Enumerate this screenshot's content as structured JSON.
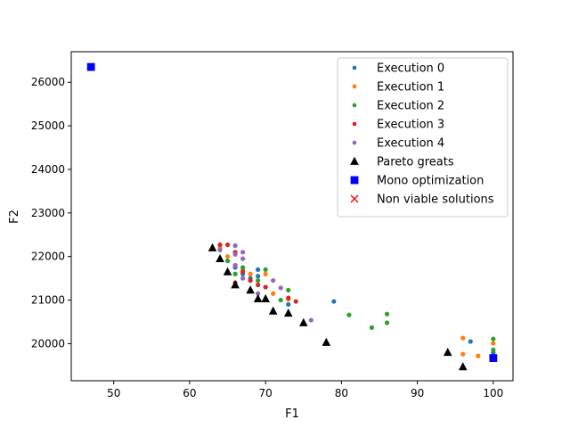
{
  "chart_data": {
    "type": "scatter",
    "title": "",
    "xlabel": "F1",
    "ylabel": "F2",
    "xlim": [
      44.4,
      102.6
    ],
    "ylim": [
      19150,
      26700
    ],
    "xticks": [
      50,
      60,
      70,
      80,
      90,
      100
    ],
    "yticks": [
      20000,
      21000,
      22000,
      23000,
      24000,
      25000,
      26000
    ],
    "legend_position": "top-right",
    "series": [
      {
        "name": "Execution 0",
        "marker": "circle",
        "color": "#1f77b4",
        "points": [
          [
            66,
            21750
          ],
          [
            67,
            21600
          ],
          [
            68,
            21500
          ],
          [
            69,
            21700
          ],
          [
            69,
            21550
          ],
          [
            70,
            21300
          ],
          [
            73,
            20900
          ],
          [
            79,
            20970
          ],
          [
            97,
            20050
          ],
          [
            100,
            19800
          ]
        ]
      },
      {
        "name": "Execution 1",
        "marker": "circle",
        "color": "#ff7f0e",
        "points": [
          [
            64,
            22200
          ],
          [
            65,
            22000
          ],
          [
            66,
            21800
          ],
          [
            67,
            21700
          ],
          [
            68,
            21600
          ],
          [
            70,
            21600
          ],
          [
            71,
            21150
          ],
          [
            73,
            21020
          ],
          [
            96,
            20130
          ],
          [
            96,
            19760
          ],
          [
            98,
            19720
          ],
          [
            100,
            20010
          ]
        ]
      },
      {
        "name": "Execution 2",
        "marker": "circle",
        "color": "#2ca02c",
        "points": [
          [
            65,
            21900
          ],
          [
            66,
            21600
          ],
          [
            67,
            21750
          ],
          [
            69,
            21450
          ],
          [
            70,
            21700
          ],
          [
            72,
            21000
          ],
          [
            73,
            21230
          ],
          [
            81,
            20660
          ],
          [
            84,
            20370
          ],
          [
            86,
            20680
          ],
          [
            86,
            20480
          ],
          [
            100,
            20110
          ],
          [
            100,
            19860
          ]
        ]
      },
      {
        "name": "Execution 3",
        "marker": "circle",
        "color": "#d62728",
        "points": [
          [
            64,
            22270
          ],
          [
            65,
            22270
          ],
          [
            66,
            22100
          ],
          [
            66,
            21400
          ],
          [
            67,
            21650
          ],
          [
            68,
            21450
          ],
          [
            69,
            21350
          ],
          [
            70,
            21300
          ],
          [
            73,
            21050
          ],
          [
            74,
            20970
          ]
        ]
      },
      {
        "name": "Execution 4",
        "marker": "circle",
        "color": "#9467bd",
        "points": [
          [
            64,
            22150
          ],
          [
            66,
            22250
          ],
          [
            66,
            22050
          ],
          [
            66,
            21800
          ],
          [
            67,
            22100
          ],
          [
            67,
            21950
          ],
          [
            67,
            21500
          ],
          [
            69,
            21150
          ],
          [
            71,
            21450
          ],
          [
            72,
            21280
          ],
          [
            76,
            20540
          ]
        ]
      },
      {
        "name": "Pareto greats",
        "marker": "triangle",
        "color": "#000000",
        "points": [
          [
            63,
            22200
          ],
          [
            64,
            21950
          ],
          [
            65,
            21650
          ],
          [
            66,
            21350
          ],
          [
            68,
            21230
          ],
          [
            69,
            21030
          ],
          [
            70,
            21030
          ],
          [
            71,
            20750
          ],
          [
            73,
            20700
          ],
          [
            75,
            20480
          ],
          [
            78,
            20030
          ],
          [
            94,
            19800
          ],
          [
            96,
            19470
          ]
        ]
      },
      {
        "name": "Mono optimization",
        "marker": "square",
        "color": "#0000ff",
        "points": [
          [
            47,
            26350
          ],
          [
            100,
            19670
          ]
        ]
      },
      {
        "name": "Non viable solutions",
        "marker": "x",
        "color": "#ff0000",
        "points": []
      }
    ]
  }
}
